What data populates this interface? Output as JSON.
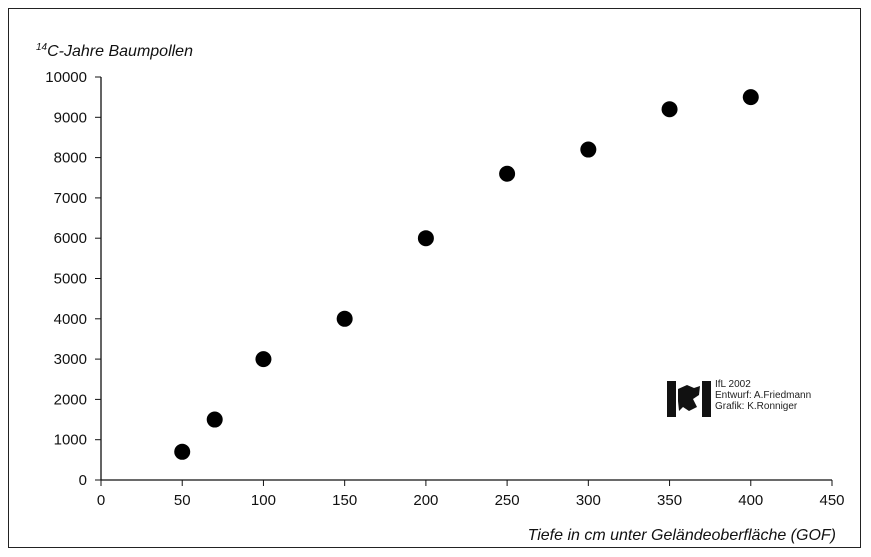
{
  "chart_data": {
    "type": "scatter",
    "title": "",
    "ylabel_prefix": "14",
    "ylabel": "C-Jahre Baumpollen",
    "xlabel": "Tiefe in cm unter Geländeoberfläche (GOF)",
    "xlim": [
      0,
      450
    ],
    "ylim": [
      0,
      10000
    ],
    "x_ticks": [
      "0",
      "50",
      "100",
      "150",
      "200",
      "250",
      "300",
      "350",
      "400",
      "450"
    ],
    "y_ticks": [
      "0",
      "1000",
      "2000",
      "3000",
      "4000",
      "5000",
      "6000",
      "7000",
      "8000",
      "9000",
      "10000"
    ],
    "grid": false,
    "points": [
      {
        "x": 50,
        "y": 700
      },
      {
        "x": 70,
        "y": 1500
      },
      {
        "x": 100,
        "y": 3000
      },
      {
        "x": 150,
        "y": 4000
      },
      {
        "x": 200,
        "y": 6000
      },
      {
        "x": 250,
        "y": 7600
      },
      {
        "x": 300,
        "y": 8200
      },
      {
        "x": 350,
        "y": 9200
      },
      {
        "x": 400,
        "y": 9500
      }
    ],
    "marker_color": "#000000"
  },
  "credit": {
    "line1": "IfL 2002",
    "line2": "Entwurf: A.Friedmann",
    "line3": "Grafik: K.Ronniger"
  }
}
